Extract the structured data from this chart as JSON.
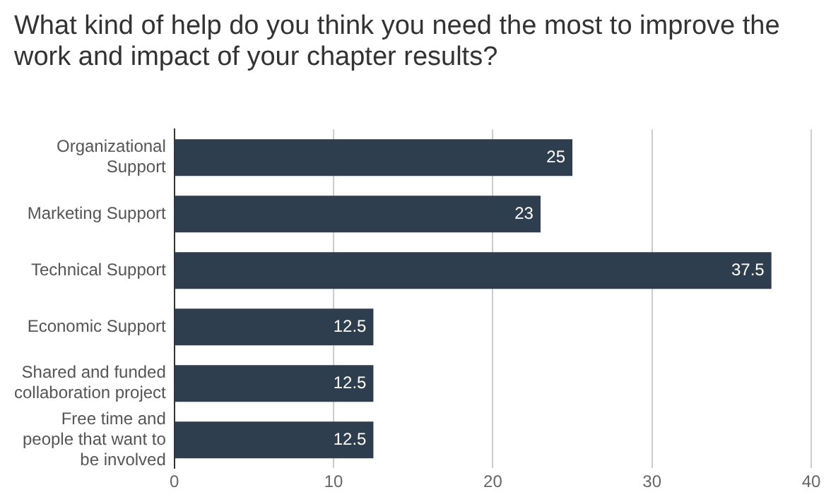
{
  "chart_data": {
    "type": "bar",
    "orientation": "horizontal",
    "title": "What kind of help do you think you need the most to improve the work and impact of your chapter results?",
    "categories": [
      "Organizational Support",
      "Marketing Support",
      "Technical Support",
      "Economic Support",
      "Shared and funded collaboration project",
      "Free time and people that want to be involved"
    ],
    "values": [
      25,
      23,
      37.5,
      12.5,
      12.5,
      12.5
    ],
    "color": "#2f3e4e",
    "xlim": [
      0,
      40
    ],
    "xticks": [
      0,
      10,
      20,
      30,
      40
    ],
    "grid": "x",
    "data_labels": true,
    "legend": false
  }
}
